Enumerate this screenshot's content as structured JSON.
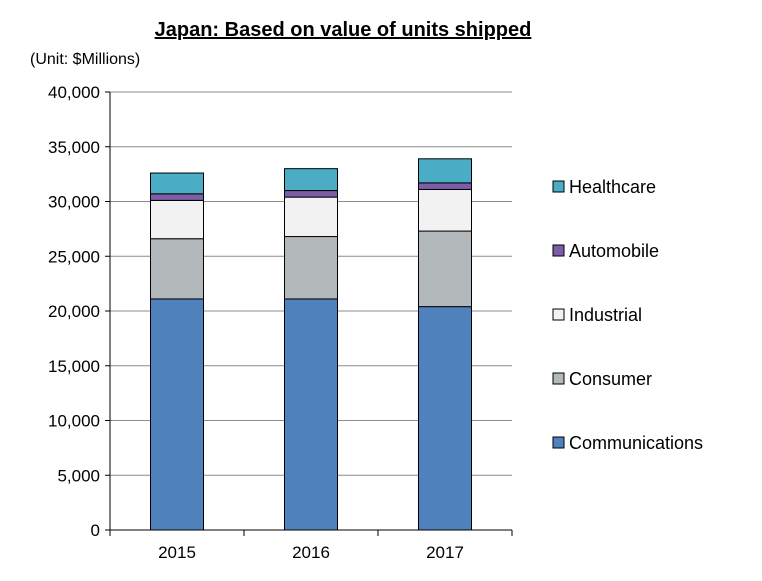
{
  "chart_data": {
    "type": "bar",
    "stacked": true,
    "title": "Japan: Based on value of units shipped",
    "unit_label": "(Unit: $Millions)",
    "categories": [
      "2015",
      "2016",
      "2017"
    ],
    "ylim": [
      0,
      40000
    ],
    "y_ticks": [
      0,
      5000,
      10000,
      15000,
      20000,
      25000,
      30000,
      35000,
      40000
    ],
    "y_tick_labels": [
      "0",
      "5,000",
      "10,000",
      "15,000",
      "20,000",
      "25,000",
      "30,000",
      "35,000",
      "40,000"
    ],
    "grid": true,
    "legend_position": "right",
    "series": [
      {
        "name": "Communications",
        "color": "#4F81BD",
        "values": [
          21100,
          21100,
          20400
        ]
      },
      {
        "name": "Consumer",
        "color": "#B3B9BA",
        "values": [
          5500,
          5700,
          6900
        ]
      },
      {
        "name": "Industrial",
        "color": "#F2F2F2",
        "values": [
          3500,
          3600,
          3800
        ]
      },
      {
        "name": "Automobile",
        "color": "#7B5EA7",
        "values": [
          600,
          600,
          600
        ]
      },
      {
        "name": "Healthcare",
        "color": "#4BACC6",
        "values": [
          1900,
          2000,
          2200
        ]
      }
    ]
  }
}
